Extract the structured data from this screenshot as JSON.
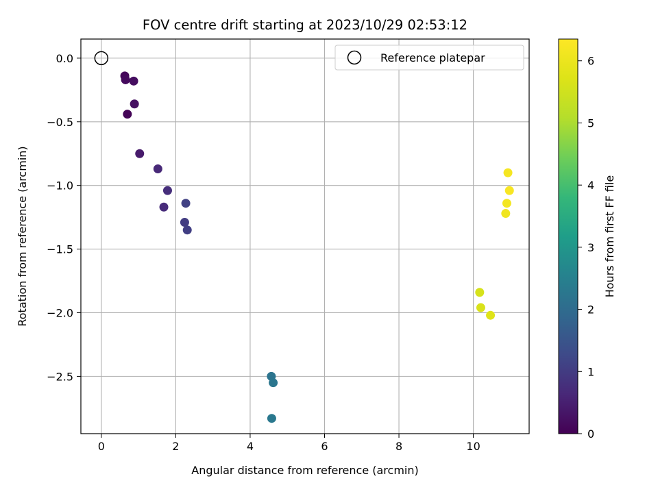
{
  "chart_data": {
    "type": "scatter",
    "title": "FOV centre drift starting at 2023/10/29 02:53:12",
    "xlabel": "Angular distance from reference (arcmin)",
    "ylabel": "Rotation from reference (arcmin)",
    "xlim": [
      -0.55,
      11.5
    ],
    "ylim": [
      -2.95,
      0.15
    ],
    "x_ticks": [
      0,
      2,
      4,
      6,
      8,
      10
    ],
    "x_tick_labels": [
      "0",
      "2",
      "4",
      "6",
      "8",
      "10"
    ],
    "y_ticks": [
      0.0,
      -0.5,
      -1.0,
      -1.5,
      -2.0,
      -2.5
    ],
    "y_tick_labels": [
      "0.0",
      "−0.5",
      "−1.0",
      "−1.5",
      "−2.0",
      "−2.5"
    ],
    "grid": true,
    "legend": {
      "position": "top-right",
      "entries": [
        "Reference platepar"
      ]
    },
    "reference_point": {
      "name": "Reference platepar",
      "x": 0.0,
      "y": 0.0
    },
    "colorbar": {
      "label": "Hours from first FF file",
      "colormap": "viridis",
      "range": [
        0,
        6.35
      ],
      "ticks": [
        0,
        1,
        2,
        3,
        4,
        5,
        6
      ],
      "tick_labels": [
        "0",
        "1",
        "2",
        "3",
        "4",
        "5",
        "6"
      ]
    },
    "series": [
      {
        "points": [
          {
            "x": 0.63,
            "y": -0.14,
            "c": 0.1
          },
          {
            "x": 0.65,
            "y": -0.17,
            "c": 0.15
          },
          {
            "x": 0.87,
            "y": -0.18,
            "c": 0.2
          },
          {
            "x": 0.89,
            "y": -0.36,
            "c": 0.25
          },
          {
            "x": 0.7,
            "y": -0.44,
            "c": 0.05
          },
          {
            "x": 1.03,
            "y": -0.75,
            "c": 0.4
          },
          {
            "x": 1.52,
            "y": -0.87,
            "c": 0.65
          },
          {
            "x": 1.78,
            "y": -1.04,
            "c": 0.75
          },
          {
            "x": 1.68,
            "y": -1.17,
            "c": 0.7
          },
          {
            "x": 2.27,
            "y": -1.14,
            "c": 1.1
          },
          {
            "x": 2.24,
            "y": -1.29,
            "c": 1.0
          },
          {
            "x": 2.31,
            "y": -1.35,
            "c": 1.05
          },
          {
            "x": 4.57,
            "y": -2.5,
            "c": 2.2
          },
          {
            "x": 4.62,
            "y": -2.55,
            "c": 2.25
          },
          {
            "x": 4.58,
            "y": -2.83,
            "c": 2.3
          },
          {
            "x": 10.17,
            "y": -1.84,
            "c": 5.6
          },
          {
            "x": 10.2,
            "y": -1.96,
            "c": 5.65
          },
          {
            "x": 10.46,
            "y": -2.02,
            "c": 5.75
          },
          {
            "x": 10.93,
            "y": -0.9,
            "c": 6.2
          },
          {
            "x": 10.97,
            "y": -1.04,
            "c": 6.25
          },
          {
            "x": 10.9,
            "y": -1.14,
            "c": 6.15
          },
          {
            "x": 10.87,
            "y": -1.22,
            "c": 6.1
          }
        ]
      }
    ]
  }
}
